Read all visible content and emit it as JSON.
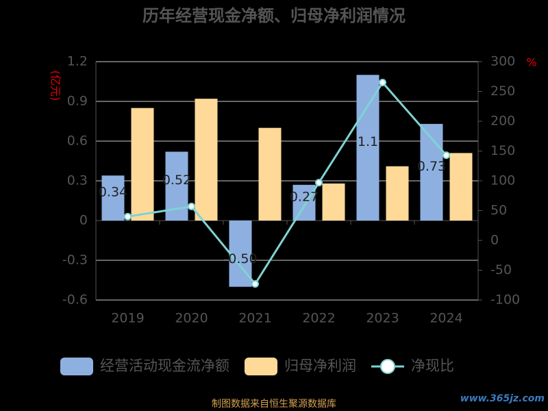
{
  "chart_data": {
    "type": "bar-line",
    "title": "历年经营现金净额、归母净利润情况",
    "y_label": "(亿元)",
    "y2_label": "%",
    "categories": [
      "2019",
      "2020",
      "2021",
      "2022",
      "2023",
      "2024"
    ],
    "series": [
      {
        "name": "经营活动现金流净额",
        "color": "#8eb0e0",
        "type": "bar",
        "values": [
          0.34,
          0.52,
          -0.5,
          0.27,
          1.1,
          0.73
        ],
        "value_labels": [
          "0.34",
          "0.52",
          "-0.50",
          "0.27",
          "1.1",
          "0.73"
        ]
      },
      {
        "name": "归母净利润",
        "color": "#ffd998",
        "type": "bar",
        "values": [
          0.85,
          0.92,
          0.7,
          0.28,
          0.41,
          0.51
        ]
      },
      {
        "name": "净现比",
        "color": "#7fd3d3",
        "type": "line",
        "axis": "y2",
        "values": [
          40,
          57,
          -73,
          97,
          265,
          143
        ]
      }
    ],
    "ylim": [
      -0.6,
      1.2
    ],
    "yticks": [
      1.2,
      0.9,
      0.6,
      0.3,
      0,
      -0.3,
      -0.6
    ],
    "y2lim": [
      -100,
      300
    ],
    "y2ticks": [
      300,
      250,
      200,
      150,
      100,
      50,
      0,
      -50,
      -100
    ],
    "grid": true,
    "source": "制图数据来自恒生聚源数据库",
    "watermark": "www.365jz.com"
  }
}
